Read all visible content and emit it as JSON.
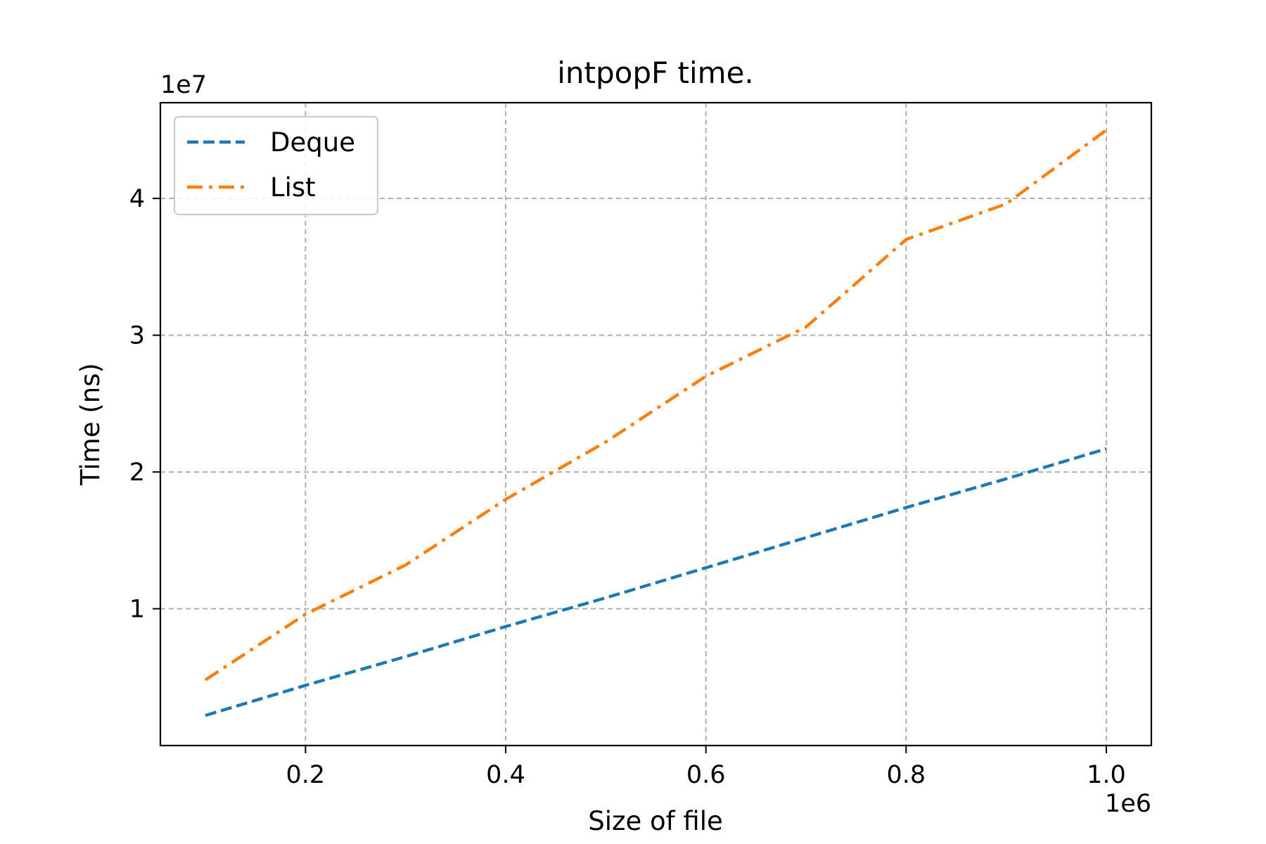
{
  "chart_data": {
    "type": "line",
    "title": "intpopF time.",
    "xlabel": "Size of file",
    "ylabel": "Time (ns)",
    "x_offset_label": "1e6",
    "y_offset_label": "1e7",
    "x_scale": 1000000,
    "y_scale": 10000000,
    "xlim": [
      55000,
      1045000
    ],
    "ylim": [
      0,
      47000000
    ],
    "x_ticks": [
      200000,
      400000,
      600000,
      800000,
      1000000
    ],
    "x_tick_labels": [
      "0.2",
      "0.4",
      "0.6",
      "0.8",
      "1.0"
    ],
    "y_ticks": [
      10000000,
      20000000,
      30000000,
      40000000
    ],
    "y_tick_labels": [
      "1",
      "2",
      "3",
      "4"
    ],
    "grid": true,
    "legend_position": "upper-left",
    "x": [
      100000,
      200000,
      300000,
      400000,
      500000,
      600000,
      700000,
      800000,
      900000,
      1000000
    ],
    "series": [
      {
        "name": "Deque",
        "color": "#1f77b4",
        "line_style": "dashed",
        "values": [
          2200000,
          4400000,
          6500000,
          8700000,
          10800000,
          13000000,
          15200000,
          17400000,
          19500000,
          21700000
        ]
      },
      {
        "name": "List",
        "color": "#ff7f0e",
        "line_style": "dash-dot",
        "values": [
          4800000,
          9600000,
          13200000,
          18000000,
          22200000,
          27000000,
          30600000,
          37000000,
          39600000,
          45000000
        ]
      }
    ]
  }
}
